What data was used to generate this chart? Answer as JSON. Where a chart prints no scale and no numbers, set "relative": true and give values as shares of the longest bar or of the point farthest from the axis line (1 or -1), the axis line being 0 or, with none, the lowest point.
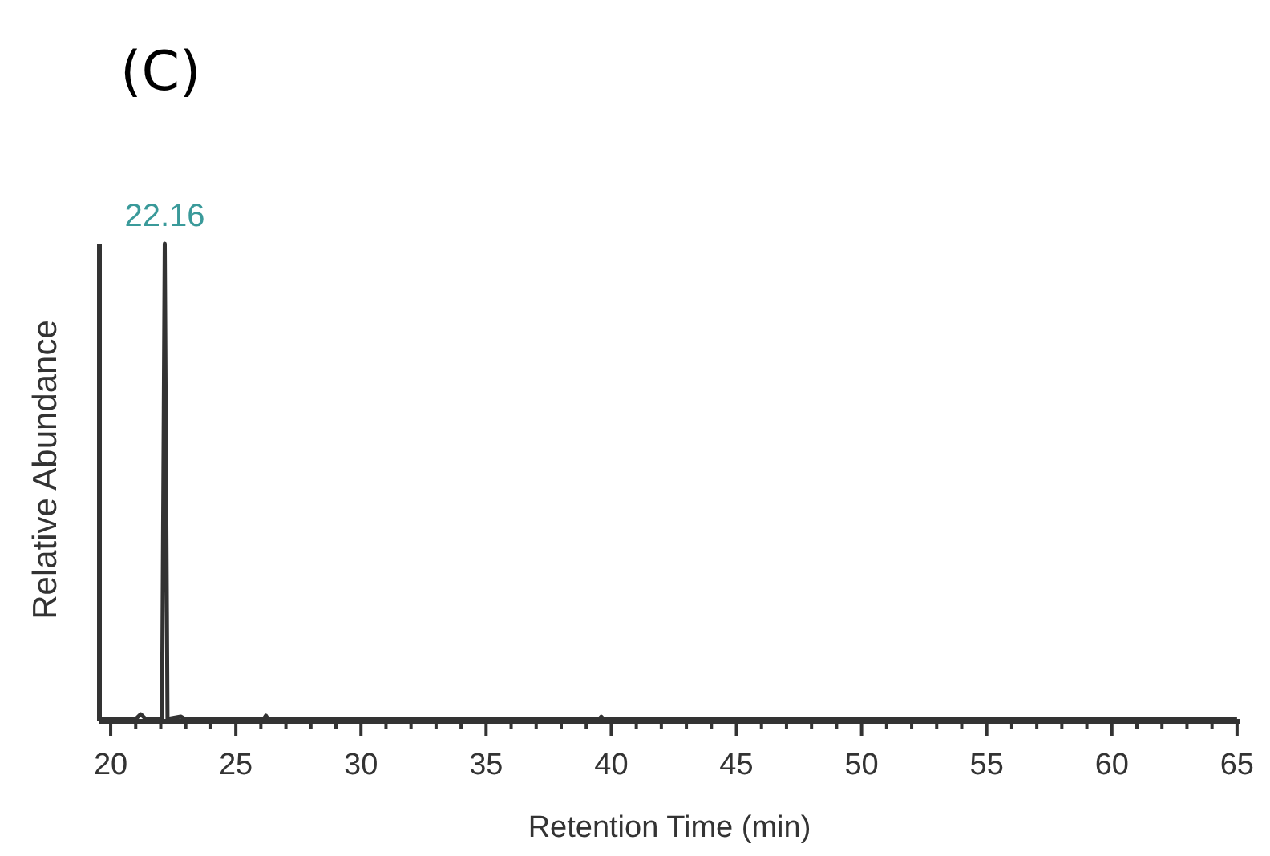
{
  "chart_data": {
    "type": "line",
    "title": "(C)",
    "xlabel": "Retention Time (min)",
    "ylabel": "Relative Abundance",
    "relative": true,
    "xlim": [
      19.55,
      65.1
    ],
    "xticks": [
      20,
      {
        "value": 21,
        "label": null
      },
      {
        "value": 22,
        "label": null
      },
      {
        "value": 23,
        "label": null
      },
      {
        "value": 24,
        "label": null
      },
      25,
      {
        "value": 26,
        "label": null
      },
      {
        "value": 27,
        "label": null
      },
      {
        "value": 28,
        "label": null
      },
      {
        "value": 29,
        "label": null
      },
      30,
      {
        "value": 31,
        "label": null
      },
      {
        "value": 32,
        "label": null
      },
      {
        "value": 33,
        "label": null
      },
      {
        "value": 34,
        "label": null
      },
      35,
      {
        "value": 36,
        "label": null
      },
      {
        "value": 37,
        "label": null
      },
      {
        "value": 38,
        "label": null
      },
      {
        "value": 39,
        "label": null
      },
      40,
      {
        "value": 41,
        "label": null
      },
      {
        "value": 42,
        "label": null
      },
      {
        "value": 43,
        "label": null
      },
      {
        "value": 44,
        "label": null
      },
      45,
      {
        "value": 46,
        "label": null
      },
      {
        "value": 47,
        "label": null
      },
      {
        "value": 48,
        "label": null
      },
      {
        "value": 49,
        "label": null
      },
      50,
      {
        "value": 51,
        "label": null
      },
      {
        "value": 52,
        "label": null
      },
      {
        "value": 53,
        "label": null
      },
      {
        "value": 54,
        "label": null
      },
      55,
      {
        "value": 56,
        "label": null
      },
      {
        "value": 57,
        "label": null
      },
      {
        "value": 58,
        "label": null
      },
      {
        "value": 59,
        "label": null
      },
      60,
      {
        "value": 61,
        "label": null
      },
      {
        "value": 62,
        "label": null
      },
      {
        "value": 63,
        "label": null
      },
      {
        "value": 64,
        "label": null
      },
      65
    ],
    "series": [
      {
        "color": "#333333",
        "x": [
          19.6,
          21.0,
          21.2,
          21.4,
          22.05,
          22.16,
          22.27,
          22.8,
          23.0,
          26.1,
          26.2,
          26.3,
          39.5,
          39.6,
          39.7,
          65.0
        ],
        "values": [
          0.005,
          0.005,
          0.015,
          0.005,
          0.005,
          1,
          0.005,
          0.01,
          0.004,
          0.004,
          0.012,
          0.004,
          0.004,
          0.01,
          0.004,
          0.004
        ]
      }
    ],
    "annotations": [
      {
        "text": "22.16",
        "x": 22.16,
        "y": 1
      }
    ]
  }
}
